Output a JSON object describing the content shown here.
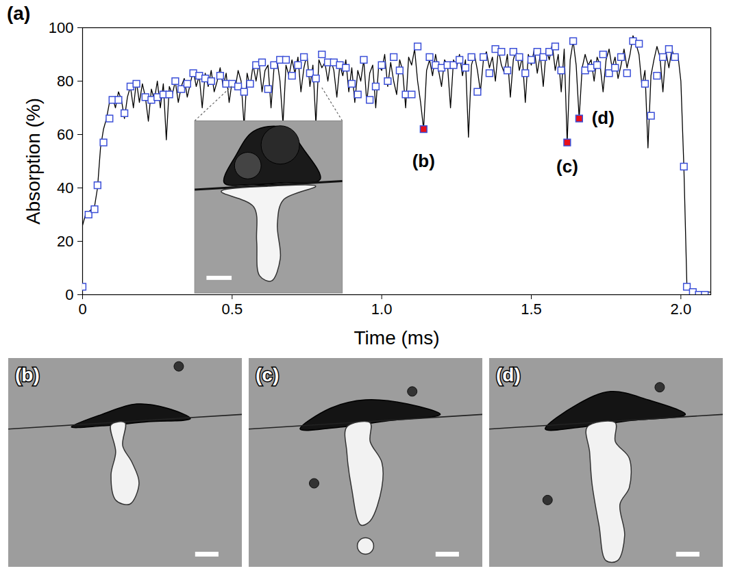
{
  "chart_data": {
    "type": "line",
    "panel_label": "(a)",
    "x_label": "Time (ms)",
    "y_label": "Absorption (%)",
    "xlim": [
      0,
      2.1
    ],
    "xticks": [
      0,
      0.5,
      {
        "value": 1,
        "label": "1.0"
      },
      1.5,
      {
        "value": 2,
        "label": "2.0"
      }
    ],
    "ylim": [
      0,
      100
    ],
    "yticks": [
      0,
      20,
      40,
      60,
      80,
      100
    ],
    "grid": false,
    "series": [
      {
        "type": "line",
        "color": "#000000",
        "x": [
          0,
          0.01,
          0.02,
          0.03,
          0.04,
          0.05,
          0.06,
          0.07,
          0.08,
          0.09,
          0.1,
          0.11,
          0.12,
          0.13,
          0.14,
          0.15,
          0.16,
          0.17,
          0.18,
          0.19,
          0.2,
          0.21,
          0.22,
          0.23,
          0.24,
          0.25,
          0.26,
          0.27,
          0.28,
          0.29,
          0.3,
          0.31,
          0.32,
          0.33,
          0.34,
          0.35,
          0.36,
          0.37,
          0.38,
          0.39,
          0.4,
          0.41,
          0.42,
          0.43,
          0.44,
          0.45,
          0.46,
          0.47,
          0.48,
          0.49,
          0.5,
          0.51,
          0.52,
          0.53,
          0.54,
          0.55,
          0.56,
          0.57,
          0.58,
          0.59,
          0.6,
          0.61,
          0.62,
          0.63,
          0.64,
          0.65,
          0.66,
          0.67,
          0.68,
          0.69,
          0.7,
          0.71,
          0.72,
          0.73,
          0.74,
          0.75,
          0.76,
          0.77,
          0.78,
          0.79,
          0.8,
          0.81,
          0.82,
          0.83,
          0.84,
          0.85,
          0.86,
          0.87,
          0.88,
          0.89,
          0.9,
          0.91,
          0.92,
          0.93,
          0.94,
          0.95,
          0.96,
          0.97,
          0.98,
          0.99,
          1,
          1.01,
          1.02,
          1.03,
          1.04,
          1.05,
          1.06,
          1.07,
          1.08,
          1.09,
          1.1,
          1.11,
          1.12,
          1.13,
          1.14,
          1.15,
          1.16,
          1.17,
          1.18,
          1.19,
          1.2,
          1.21,
          1.22,
          1.23,
          1.24,
          1.25,
          1.26,
          1.27,
          1.28,
          1.29,
          1.3,
          1.31,
          1.32,
          1.33,
          1.34,
          1.35,
          1.36,
          1.37,
          1.38,
          1.39,
          1.4,
          1.41,
          1.42,
          1.43,
          1.44,
          1.45,
          1.46,
          1.47,
          1.48,
          1.49,
          1.5,
          1.51,
          1.52,
          1.53,
          1.54,
          1.55,
          1.56,
          1.57,
          1.58,
          1.59,
          1.6,
          1.61,
          1.62,
          1.63,
          1.64,
          1.65,
          1.66,
          1.67,
          1.68,
          1.69,
          1.7,
          1.71,
          1.72,
          1.73,
          1.74,
          1.75,
          1.76,
          1.77,
          1.78,
          1.79,
          1.8,
          1.81,
          1.82,
          1.83,
          1.84,
          1.85,
          1.86,
          1.87,
          1.88,
          1.89,
          1.9,
          1.91,
          1.92,
          1.93,
          1.94,
          1.95,
          1.96,
          1.97,
          1.98,
          1.99,
          2,
          2.01,
          2.02,
          2.03,
          2.04,
          2.05,
          2.06,
          2.07,
          2.08,
          2.09,
          2.1
        ],
        "values": [
          26,
          30,
          31,
          32,
          33,
          40,
          55,
          62,
          66,
          72,
          74,
          70,
          76,
          73,
          66,
          74,
          78,
          70,
          80,
          72,
          79,
          74,
          65,
          77,
          73,
          80,
          70,
          79,
          58,
          78,
          75,
          80,
          72,
          78,
          81,
          74,
          79,
          84,
          78,
          82,
          70,
          83,
          78,
          84,
          76,
          80,
          85,
          78,
          83,
          72,
          80,
          77,
          84,
          80,
          63,
          83,
          78,
          86,
          80,
          87,
          76,
          84,
          86,
          70,
          85,
          88,
          80,
          64,
          86,
          82,
          88,
          83,
          89,
          76,
          85,
          90,
          78,
          86,
          64,
          88,
          85,
          87,
          80,
          88,
          84,
          74,
          86,
          82,
          88,
          76,
          85,
          72,
          84,
          80,
          88,
          72,
          83,
          86,
          70,
          86,
          84,
          90,
          78,
          87,
          80,
          75,
          88,
          84,
          70,
          89,
          86,
          92,
          80,
          72,
          62,
          84,
          88,
          82,
          90,
          84,
          78,
          88,
          86,
          70,
          88,
          85,
          90,
          82,
          88,
          59,
          86,
          90,
          84,
          76,
          88,
          91,
          85,
          89,
          80,
          92,
          86,
          83,
          90,
          74,
          88,
          92,
          84,
          89,
          72,
          90,
          86,
          92,
          83,
          90,
          78,
          92,
          88,
          94,
          84,
          90,
          76,
          92,
          57,
          88,
          95,
          86,
          66,
          85,
          90,
          86,
          88,
          80,
          89,
          86,
          76,
          88,
          92,
          85,
          89,
          81,
          86,
          92,
          85,
          90,
          97,
          94,
          90,
          78,
          84,
          55,
          82,
          88,
          93,
          89,
          76,
          91,
          85,
          92,
          88,
          90,
          80,
          48,
          4,
          2,
          1,
          1,
          1,
          1,
          1,
          1,
          1
        ]
      },
      {
        "type": "scatter",
        "marker": "open_square",
        "color": "#3b4fd8",
        "x": [
          0,
          0.02,
          0.04,
          0.05,
          0.07,
          0.09,
          0.1,
          0.12,
          0.14,
          0.16,
          0.18,
          0.21,
          0.23,
          0.25,
          0.27,
          0.29,
          0.31,
          0.33,
          0.35,
          0.37,
          0.39,
          0.41,
          0.43,
          0.46,
          0.48,
          0.5,
          0.52,
          0.54,
          0.56,
          0.58,
          0.6,
          0.62,
          0.64,
          0.66,
          0.68,
          0.7,
          0.72,
          0.74,
          0.76,
          0.78,
          0.8,
          0.82,
          0.84,
          0.86,
          0.88,
          0.9,
          0.92,
          0.94,
          0.96,
          0.98,
          1,
          1.02,
          1.04,
          1.06,
          1.08,
          1.1,
          1.12,
          1.16,
          1.18,
          1.2,
          1.22,
          1.24,
          1.26,
          1.28,
          1.3,
          1.32,
          1.34,
          1.36,
          1.38,
          1.4,
          1.42,
          1.44,
          1.46,
          1.48,
          1.5,
          1.52,
          1.54,
          1.56,
          1.58,
          1.6,
          1.64,
          1.68,
          1.7,
          1.72,
          1.74,
          1.76,
          1.78,
          1.8,
          1.82,
          1.84,
          1.86,
          1.88,
          1.9,
          1.92,
          1.94,
          1.96,
          1.98,
          2.01,
          2.02,
          2.04,
          2.06,
          2.08
        ],
        "values": [
          3,
          30,
          32,
          41,
          57,
          66,
          73,
          73,
          68,
          78,
          79,
          74,
          73,
          74,
          75,
          75,
          80,
          77,
          79,
          83,
          82,
          81,
          80,
          82,
          79,
          79,
          78,
          76,
          79,
          86,
          87,
          77,
          86,
          88,
          88,
          82,
          86,
          89,
          83,
          81,
          90,
          87,
          87,
          86,
          85,
          79,
          75,
          88,
          73,
          78,
          86,
          80,
          89,
          84,
          75,
          75,
          93,
          89,
          86,
          85,
          86,
          86,
          88,
          85,
          89,
          76,
          89,
          83,
          92,
          91,
          84,
          91,
          89,
          83,
          88,
          91,
          89,
          91,
          93,
          84,
          95,
          84,
          85,
          86,
          90,
          83,
          85,
          89,
          83,
          95,
          94,
          79,
          67,
          82,
          89,
          92,
          89,
          48,
          3,
          1,
          0,
          0
        ]
      },
      {
        "type": "scatter",
        "marker": "square",
        "color": "#e8101a",
        "x": [
          1.14,
          1.62,
          1.66
        ],
        "values": [
          62,
          57,
          66
        ]
      }
    ],
    "annotations": [
      {
        "text": "(b)",
        "x": 1.14,
        "y": 50
      },
      {
        "text": "(c)",
        "x": 1.62,
        "y": 48
      },
      {
        "text": "(d)",
        "x": 1.74,
        "y": 66
      }
    ]
  },
  "images": [
    {
      "label": "(b)"
    },
    {
      "label": "(c)"
    },
    {
      "label": "(d)"
    }
  ]
}
